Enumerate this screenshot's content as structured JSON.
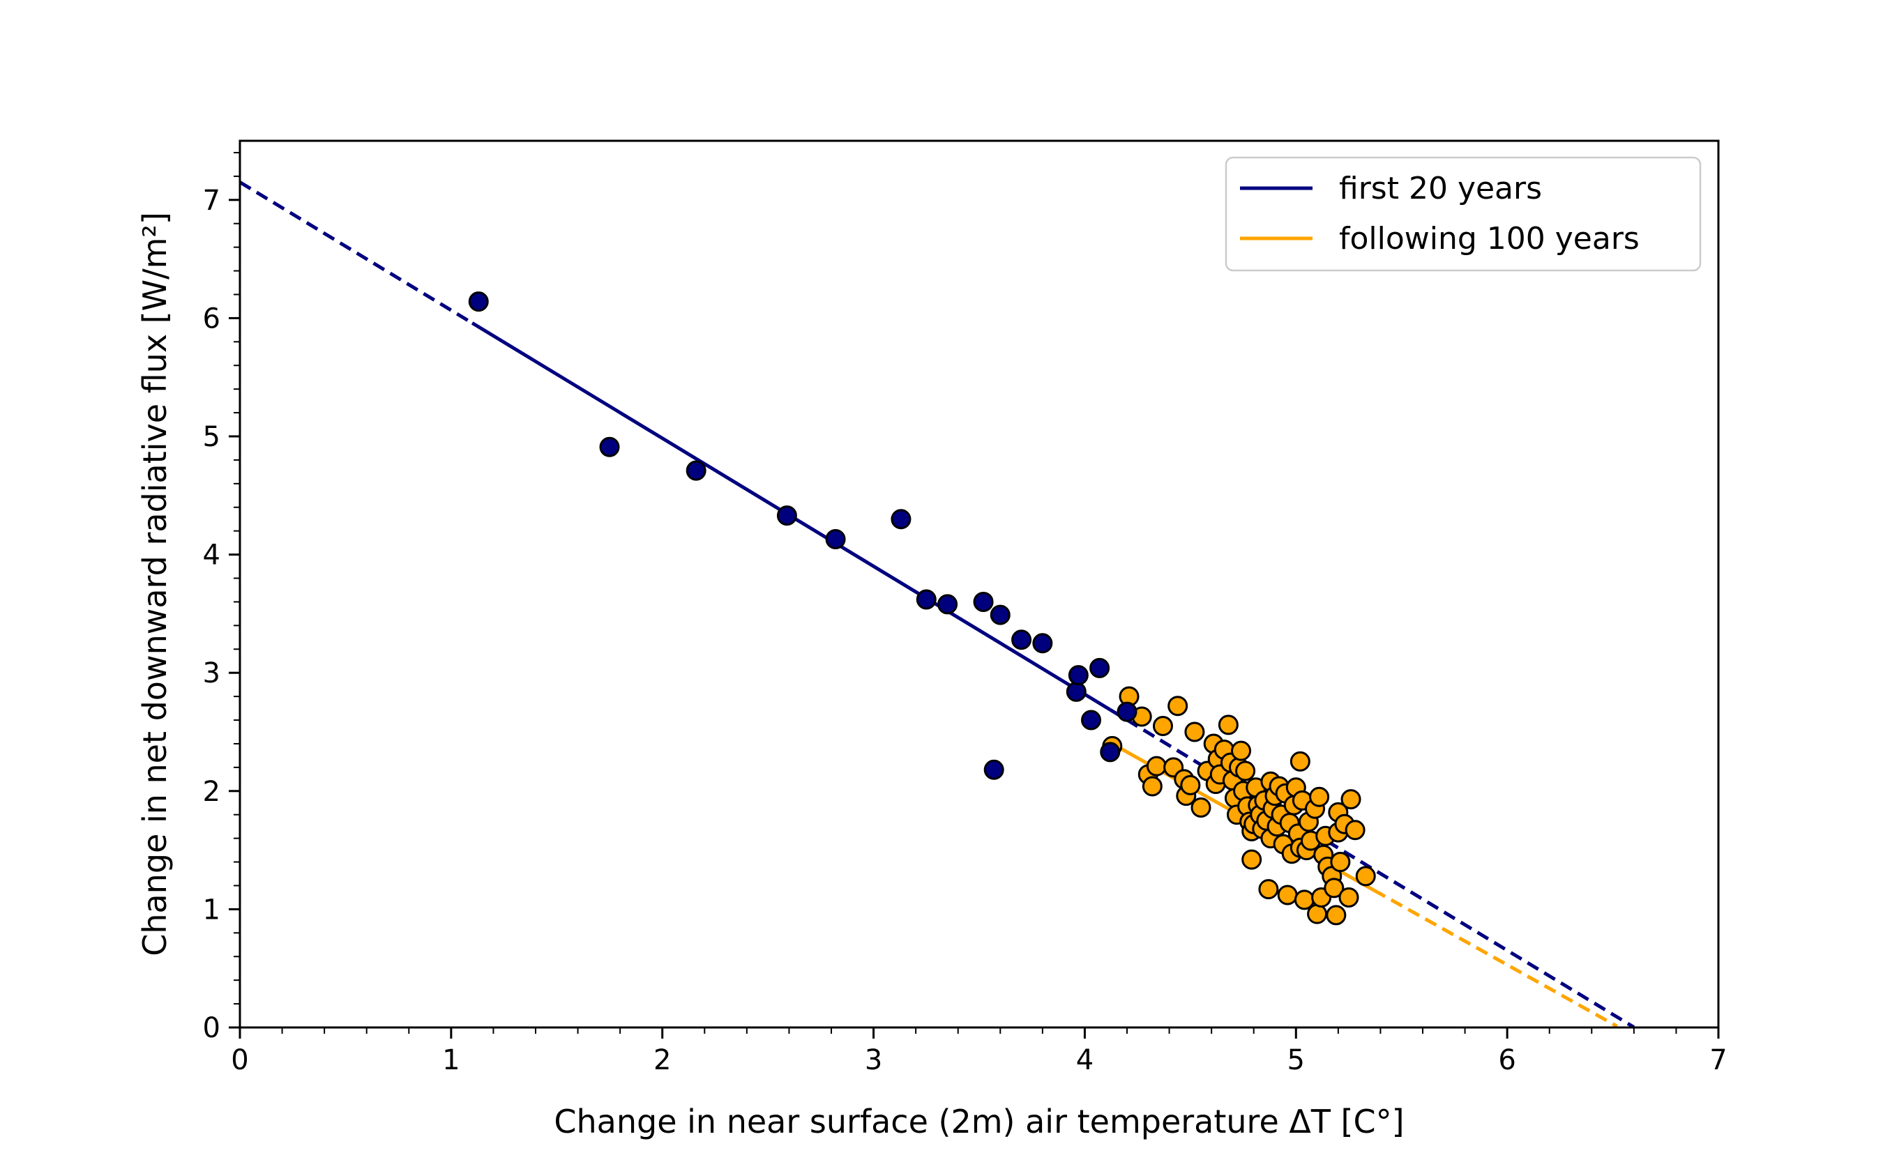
{
  "chart_data": {
    "type": "scatter",
    "title": "",
    "xlabel": "Change in near surface (2m) air temperature ΔT [C°]",
    "ylabel": "Change in net downward radiative flux [W/m²]",
    "xlim": [
      0,
      7
    ],
    "ylim": [
      0,
      7.5
    ],
    "x_ticks": [
      "0",
      "1",
      "2",
      "3",
      "4",
      "5",
      "6",
      "7"
    ],
    "y_ticks": [
      "0",
      "1",
      "2",
      "3",
      "4",
      "5",
      "6",
      "7"
    ],
    "grid": false,
    "legend_position": "top-right",
    "colors": {
      "first": "#00007f",
      "following": "#ffa500",
      "edge": "#000000"
    },
    "series": [
      {
        "name": "first 20 years",
        "color": "#00007f",
        "fit": {
          "intercept": 7.15,
          "slope": -1.083,
          "solid_range": [
            1.1,
            4.12
          ],
          "dashed_ranges": [
            [
              0,
              1.1
            ],
            [
              4.12,
              6.6
            ]
          ]
        },
        "points": [
          [
            1.13,
            6.14
          ],
          [
            1.75,
            4.91
          ],
          [
            2.16,
            4.71
          ],
          [
            2.59,
            4.33
          ],
          [
            2.82,
            4.13
          ],
          [
            3.13,
            4.3
          ],
          [
            3.25,
            3.62
          ],
          [
            3.35,
            3.58
          ],
          [
            3.52,
            3.6
          ],
          [
            3.6,
            3.49
          ],
          [
            3.57,
            2.18
          ],
          [
            3.7,
            3.28
          ],
          [
            3.8,
            3.25
          ],
          [
            3.96,
            2.84
          ],
          [
            3.97,
            2.98
          ],
          [
            4.03,
            2.6
          ],
          [
            4.07,
            3.04
          ],
          [
            4.12,
            2.33
          ],
          [
            4.2,
            2.67
          ]
        ]
      },
      {
        "name": "following 100 years",
        "color": "#ffa500",
        "fit": {
          "intercept": 6.53,
          "slope": -1.0,
          "solid_range": [
            4.12,
            5.37
          ],
          "dashed_ranges": [
            [
              5.37,
              6.52
            ]
          ]
        },
        "points": [
          [
            4.13,
            2.38
          ],
          [
            4.21,
            2.8
          ],
          [
            4.27,
            2.63
          ],
          [
            4.3,
            2.14
          ],
          [
            4.32,
            2.04
          ],
          [
            4.34,
            2.21
          ],
          [
            4.37,
            2.55
          ],
          [
            4.42,
            2.2
          ],
          [
            4.44,
            2.72
          ],
          [
            4.47,
            2.1
          ],
          [
            4.48,
            1.96
          ],
          [
            4.5,
            2.05
          ],
          [
            4.52,
            2.5
          ],
          [
            4.55,
            1.86
          ],
          [
            4.58,
            2.17
          ],
          [
            4.61,
            2.4
          ],
          [
            4.62,
            2.06
          ],
          [
            4.63,
            2.27
          ],
          [
            4.64,
            2.14
          ],
          [
            4.66,
            2.35
          ],
          [
            4.68,
            2.56
          ],
          [
            4.69,
            2.24
          ],
          [
            4.7,
            2.09
          ],
          [
            4.71,
            1.94
          ],
          [
            4.72,
            1.8
          ],
          [
            4.73,
            2.2
          ],
          [
            4.74,
            2.34
          ],
          [
            4.75,
            2.0
          ],
          [
            4.76,
            2.17
          ],
          [
            4.77,
            1.87
          ],
          [
            4.78,
            1.74
          ],
          [
            4.79,
            1.66
          ],
          [
            4.79,
            1.42
          ],
          [
            4.8,
            1.72
          ],
          [
            4.81,
            2.03
          ],
          [
            4.82,
            1.88
          ],
          [
            4.83,
            1.8
          ],
          [
            4.84,
            1.68
          ],
          [
            4.85,
            1.92
          ],
          [
            4.86,
            1.75
          ],
          [
            4.87,
            1.17
          ],
          [
            4.88,
            2.08
          ],
          [
            4.88,
            1.6
          ],
          [
            4.89,
            1.85
          ],
          [
            4.9,
            1.96
          ],
          [
            4.91,
            1.7
          ],
          [
            4.92,
            2.04
          ],
          [
            4.93,
            1.8
          ],
          [
            4.94,
            1.55
          ],
          [
            4.95,
            1.98
          ],
          [
            4.96,
            1.12
          ],
          [
            4.97,
            1.73
          ],
          [
            4.98,
            1.47
          ],
          [
            4.99,
            1.88
          ],
          [
            5.0,
            2.03
          ],
          [
            5.01,
            1.64
          ],
          [
            5.02,
            1.52
          ],
          [
            5.02,
            2.25
          ],
          [
            5.03,
            1.92
          ],
          [
            5.04,
            1.08
          ],
          [
            5.05,
            1.5
          ],
          [
            5.06,
            1.74
          ],
          [
            5.07,
            1.58
          ],
          [
            5.09,
            1.85
          ],
          [
            5.1,
            0.96
          ],
          [
            5.11,
            1.95
          ],
          [
            5.12,
            1.1
          ],
          [
            5.13,
            1.46
          ],
          [
            5.14,
            1.62
          ],
          [
            5.15,
            1.36
          ],
          [
            5.17,
            1.28
          ],
          [
            5.18,
            1.18
          ],
          [
            5.19,
            0.95
          ],
          [
            5.2,
            1.82
          ],
          [
            5.2,
            1.65
          ],
          [
            5.21,
            1.4
          ],
          [
            5.23,
            1.72
          ],
          [
            5.25,
            1.1
          ],
          [
            5.26,
            1.93
          ],
          [
            5.28,
            1.67
          ],
          [
            5.33,
            1.28
          ]
        ]
      }
    ]
  }
}
